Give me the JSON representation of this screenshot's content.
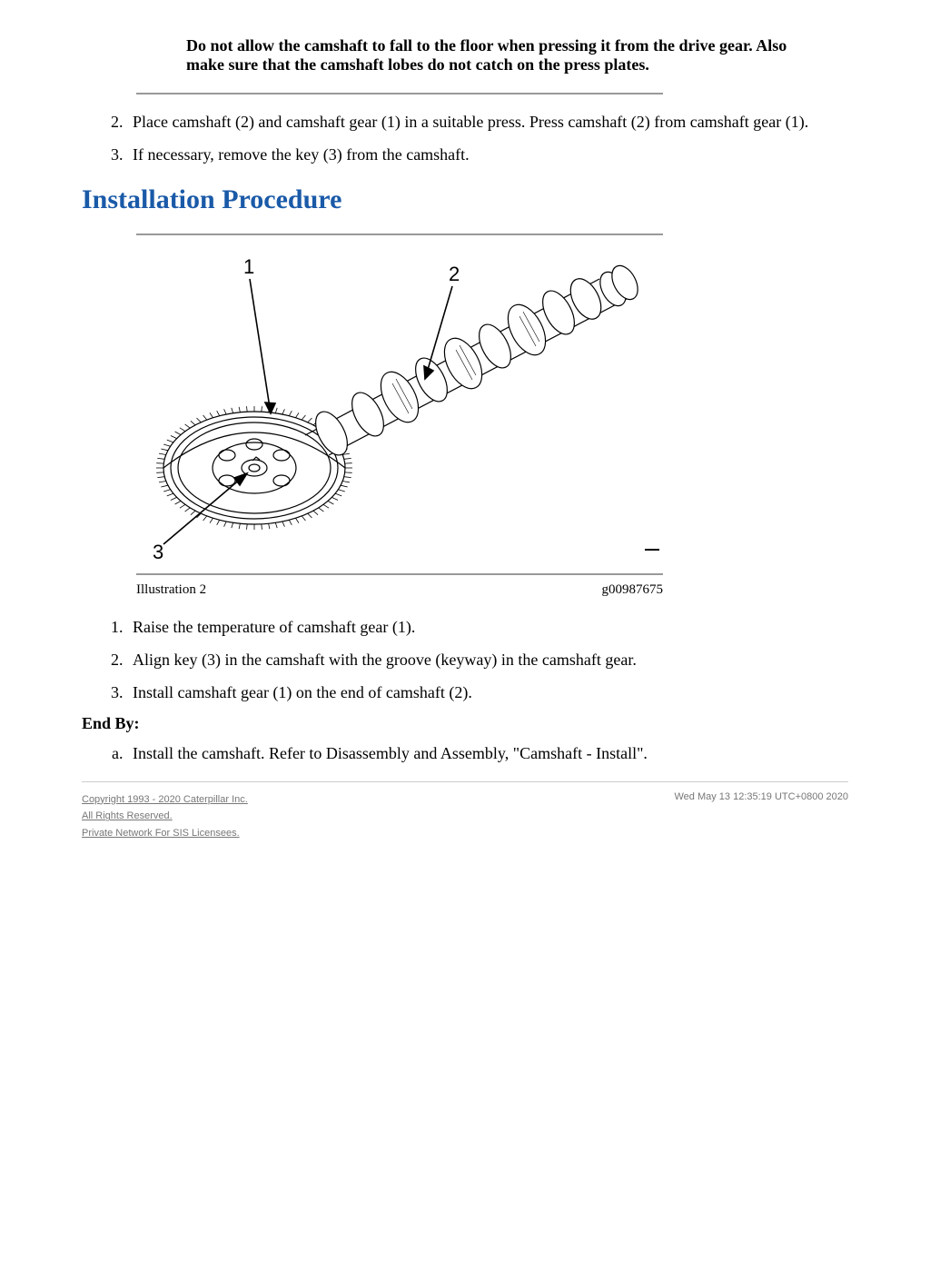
{
  "warning_text": "Do not allow the camshaft to fall to the floor when pressing it from the drive gear. Also make sure that the camshaft lobes do not catch on the press plates.",
  "steps_top": {
    "item2": "Place camshaft (2) and camshaft gear (1) in a suitable press. Press camshaft (2) from camshaft gear (1).",
    "item3": "If necessary, remove the key (3) from the camshaft."
  },
  "section_title": "Installation Procedure",
  "illustration": {
    "label": "Illustration 2",
    "gnum": "g00987675",
    "callouts": {
      "c1": "1",
      "c2": "2",
      "c3": "3"
    }
  },
  "steps_install": {
    "item1": "Raise the temperature of camshaft gear (1).",
    "item2": "Align key (3) in the camshaft with the groove (keyway) in the camshaft gear.",
    "item3": "Install camshaft gear (1) on the end of camshaft (2)."
  },
  "end_by_label": "End By:",
  "end_by": {
    "a": "Install the camshaft. Refer to Disassembly and Assembly, \"Camshaft - Install\"."
  },
  "footer": {
    "copyright": "Copyright 1993 - 2020 Caterpillar Inc.",
    "rights": "All Rights Reserved.",
    "network": "Private Network For SIS Licensees.",
    "timestamp": "Wed May 13 12:35:19 UTC+0800 2020"
  }
}
